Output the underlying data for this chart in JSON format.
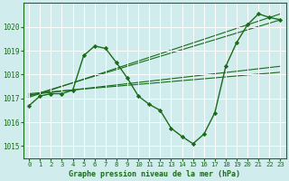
{
  "bg_color": "#d0ecec",
  "grid_color": "#b8d8d8",
  "line_color": "#1a6b1a",
  "title": "Graphe pression niveau de la mer (hPa)",
  "xlim": [
    -0.5,
    23.5
  ],
  "ylim": [
    1014.5,
    1021.0
  ],
  "yticks": [
    1015,
    1016,
    1017,
    1018,
    1019,
    1020
  ],
  "xticks": [
    0,
    1,
    2,
    3,
    4,
    5,
    6,
    7,
    8,
    9,
    10,
    11,
    12,
    13,
    14,
    15,
    16,
    17,
    18,
    19,
    20,
    21,
    22,
    23
  ],
  "main_series": {
    "x": [
      0,
      1,
      2,
      3,
      4,
      5,
      6,
      7,
      8,
      9,
      10,
      11,
      12,
      13,
      14,
      15,
      16,
      17,
      18,
      19,
      20,
      21,
      22,
      23
    ],
    "y": [
      1016.7,
      1017.1,
      1017.2,
      1017.2,
      1017.35,
      1018.8,
      1019.2,
      1019.1,
      1018.5,
      1017.85,
      1017.1,
      1016.75,
      1016.5,
      1015.75,
      1015.4,
      1015.1,
      1015.5,
      1016.4,
      1018.35,
      1019.35,
      1020.1,
      1020.55,
      1020.4,
      1020.3
    ]
  },
  "trend_lines": [
    {
      "x0": 0,
      "y0": 1017.05,
      "x1": 23,
      "y1": 1020.55
    },
    {
      "x0": 0,
      "y0": 1017.1,
      "x1": 23,
      "y1": 1020.3
    },
    {
      "x0": 0,
      "y0": 1017.15,
      "x1": 23,
      "y1": 1018.35
    },
    {
      "x0": 0,
      "y0": 1017.2,
      "x1": 23,
      "y1": 1018.1
    }
  ]
}
